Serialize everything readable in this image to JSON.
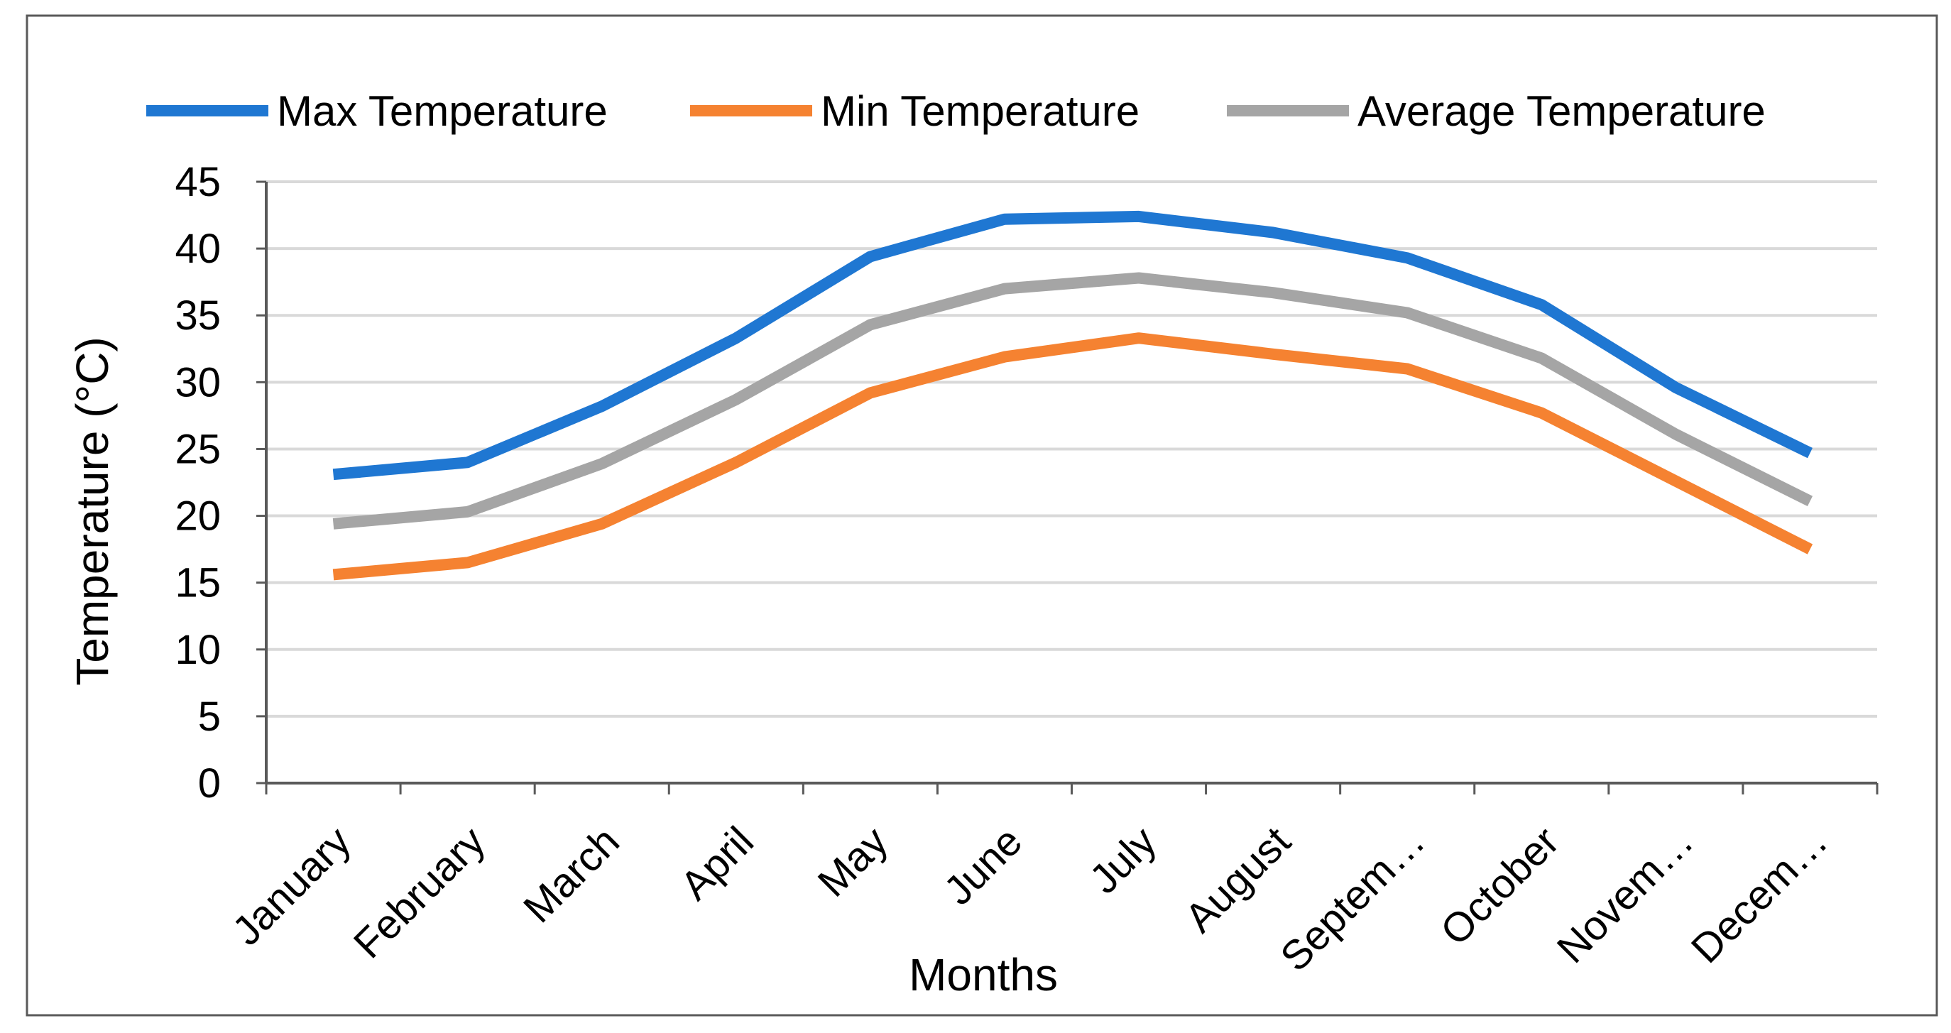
{
  "chart_data": {
    "type": "line",
    "title": "",
    "xlabel": "Months",
    "ylabel": "Temperature (°C)",
    "ylim": [
      0,
      45
    ],
    "yticks": [
      0,
      5,
      10,
      15,
      20,
      25,
      30,
      35,
      40,
      45
    ],
    "grid": true,
    "legend_position": "top",
    "categories": [
      "January",
      "February",
      "March",
      "April",
      "May",
      "June",
      "July",
      "August",
      "Septem…",
      "October",
      "Novem…",
      "Decem…"
    ],
    "series": [
      {
        "name": "Max Temperature",
        "color": "#1F77D2",
        "values": [
          23.1,
          24.0,
          28.2,
          33.3,
          39.4,
          42.2,
          42.4,
          41.2,
          39.3,
          35.8,
          29.6,
          24.7
        ]
      },
      {
        "name": "Min Temperature",
        "color": "#F58231",
        "values": [
          15.6,
          16.5,
          19.4,
          24.0,
          29.2,
          31.9,
          33.3,
          32.1,
          31.0,
          27.7,
          22.6,
          17.5
        ]
      },
      {
        "name": "Average Temperature",
        "color": "#A5A5A5",
        "values": [
          19.4,
          20.3,
          23.9,
          28.7,
          34.3,
          37.0,
          37.8,
          36.7,
          35.2,
          31.8,
          26.1,
          21.1
        ]
      }
    ]
  }
}
